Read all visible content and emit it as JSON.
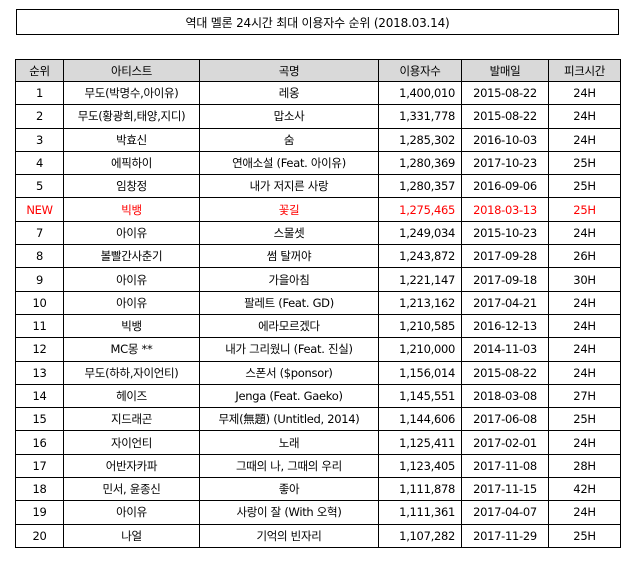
{
  "title": "역대 멜론 24시간 최대 이용자수 순위 (2018.03.14)",
  "headers": [
    "순위",
    "아티스트",
    "곡명",
    "이용자수",
    "발매일",
    "피크시간"
  ],
  "highlight_color": "#ff0000",
  "header_bg": "#d9d9d9",
  "rows": [
    {
      "rank": "1",
      "artist": "무도(박명수,아이유)",
      "song": "레옹",
      "users": "1,400,010",
      "date": "2015-08-22",
      "peak": "24H",
      "highlight": false
    },
    {
      "rank": "2",
      "artist": "무도(황광희,태양,지디)",
      "song": "맙소사",
      "users": "1,331,778",
      "date": "2015-08-22",
      "peak": "24H",
      "highlight": false
    },
    {
      "rank": "3",
      "artist": "박효신",
      "song": "숨",
      "users": "1,285,302",
      "date": "2016-10-03",
      "peak": "24H",
      "highlight": false
    },
    {
      "rank": "4",
      "artist": "에픽하이",
      "song": "연애소설 (Feat. 아이유)",
      "users": "1,280,369",
      "date": "2017-10-23",
      "peak": "25H",
      "highlight": false
    },
    {
      "rank": "5",
      "artist": "임창정",
      "song": "내가 저지른 사랑",
      "users": "1,280,357",
      "date": "2016-09-06",
      "peak": "25H",
      "highlight": false
    },
    {
      "rank": "NEW",
      "artist": "빅뱅",
      "song": "꽃길",
      "users": "1,275,465",
      "date": "2018-03-13",
      "peak": "25H",
      "highlight": true
    },
    {
      "rank": "7",
      "artist": "아이유",
      "song": "스물셋",
      "users": "1,249,034",
      "date": "2015-10-23",
      "peak": "24H",
      "highlight": false
    },
    {
      "rank": "8",
      "artist": "볼빨간사춘기",
      "song": "썸 탈꺼야",
      "users": "1,243,872",
      "date": "2017-09-28",
      "peak": "26H",
      "highlight": false
    },
    {
      "rank": "9",
      "artist": "아이유",
      "song": "가을아침",
      "users": "1,221,147",
      "date": "2017-09-18",
      "peak": "30H",
      "highlight": false
    },
    {
      "rank": "10",
      "artist": "아이유",
      "song": "팔레트 (Feat. GD)",
      "users": "1,213,162",
      "date": "2017-04-21",
      "peak": "24H",
      "highlight": false
    },
    {
      "rank": "11",
      "artist": "빅뱅",
      "song": "에라모르겠다",
      "users": "1,210,585",
      "date": "2016-12-13",
      "peak": "24H",
      "highlight": false
    },
    {
      "rank": "12",
      "artist": "MC몽 **",
      "song": "내가 그리웠니 (Feat. 진실)",
      "users": "1,210,000",
      "date": "2014-11-03",
      "peak": "24H",
      "highlight": false
    },
    {
      "rank": "13",
      "artist": "무도(하하,자이언티)",
      "song": "스폰서 ($ponsor)",
      "users": "1,156,014",
      "date": "2015-08-22",
      "peak": "24H",
      "highlight": false
    },
    {
      "rank": "14",
      "artist": "헤이즈",
      "song": "Jenga (Feat. Gaeko)",
      "users": "1,145,551",
      "date": "2018-03-08",
      "peak": "27H",
      "highlight": false
    },
    {
      "rank": "15",
      "artist": "지드래곤",
      "song": "무제(無題) (Untitled, 2014)",
      "users": "1,144,606",
      "date": "2017-06-08",
      "peak": "25H",
      "highlight": false
    },
    {
      "rank": "16",
      "artist": "자이언티",
      "song": "노래",
      "users": "1,125,411",
      "date": "2017-02-01",
      "peak": "24H",
      "highlight": false
    },
    {
      "rank": "17",
      "artist": "어반자카파",
      "song": "그때의 나, 그때의 우리",
      "users": "1,123,405",
      "date": "2017-11-08",
      "peak": "28H",
      "highlight": false
    },
    {
      "rank": "18",
      "artist": "민서, 윤종신",
      "song": "좋아",
      "users": "1,111,878",
      "date": "2017-11-15",
      "peak": "42H",
      "highlight": false
    },
    {
      "rank": "19",
      "artist": "아이유",
      "song": "사랑이 잘 (With 오혁)",
      "users": "1,111,361",
      "date": "2017-04-07",
      "peak": "24H",
      "highlight": false
    },
    {
      "rank": "20",
      "artist": "나얼",
      "song": "기억의 빈자리",
      "users": "1,107,282",
      "date": "2017-11-29",
      "peak": "25H",
      "highlight": false
    }
  ]
}
